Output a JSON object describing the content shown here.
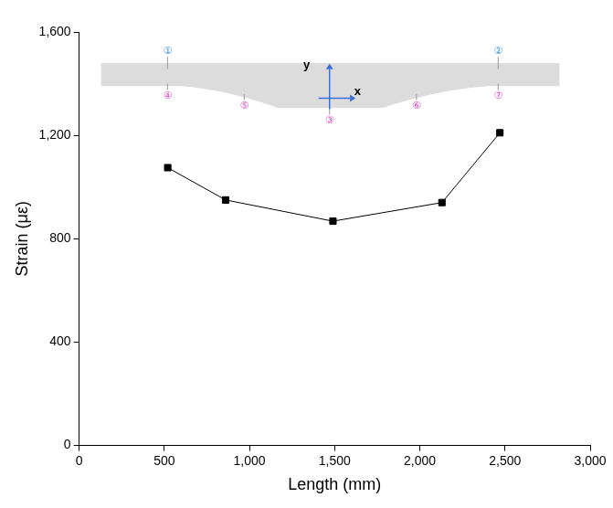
{
  "chart_data": {
    "type": "line",
    "x_label": "Length (mm)",
    "y_label": "Strain (με)",
    "x": [
      520,
      860,
      1490,
      2130,
      2470
    ],
    "values": [
      1075,
      950,
      868,
      940,
      1210
    ],
    "color": "#000000",
    "marker": "square",
    "line_style": "solid",
    "xlim": [
      0,
      3000
    ],
    "xticks": [
      0,
      500,
      1000,
      1500,
      2000,
      2500,
      3000
    ],
    "ylim": [
      0,
      1600
    ],
    "yticks": [
      0,
      400,
      800,
      1200,
      1600
    ],
    "grid": false,
    "annotations": [
      "①",
      "②",
      "③",
      "④",
      "⑤",
      "⑥",
      "⑦",
      "x",
      "y"
    ]
  }
}
